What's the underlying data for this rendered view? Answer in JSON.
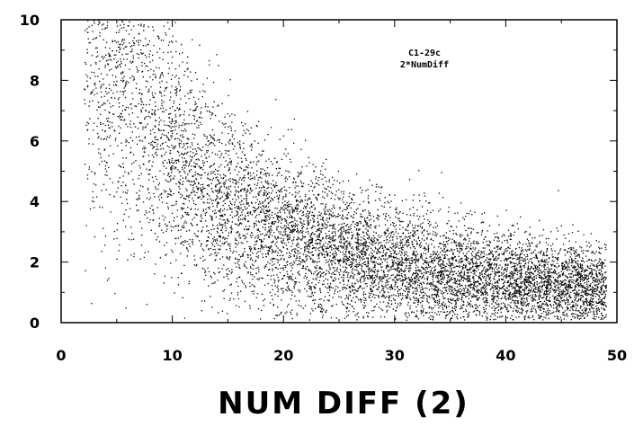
{
  "chart_data": {
    "type": "scatter",
    "title": "",
    "xlabel": "NUM DIFF (2)",
    "ylabel": "",
    "xlim": [
      0,
      50
    ],
    "ylim": [
      0,
      10
    ],
    "x_ticks": [
      "0",
      "10",
      "20",
      "30",
      "40",
      "50"
    ],
    "y_ticks": [
      "0",
      "2",
      "4",
      "6",
      "8",
      "10"
    ],
    "annotation": [
      "C1-29c",
      "2*NumDiff"
    ],
    "grid": false,
    "legend": "none",
    "marker_color": "#000000",
    "description": "Dense point cloud: values near 9-10 at x~3-10, decaying roughly as 1/x toward ~1 by x=48; data spans x from ~2 to ~49.",
    "points": {
      "x_range": [
        2,
        49
      ],
      "trend": [
        {
          "x": 4,
          "y": 8.5
        },
        {
          "x": 8,
          "y": 6.8
        },
        {
          "x": 12,
          "y": 4.8
        },
        {
          "x": 16,
          "y": 3.6
        },
        {
          "x": 20,
          "y": 2.9
        },
        {
          "x": 25,
          "y": 2.3
        },
        {
          "x": 30,
          "y": 1.9
        },
        {
          "x": 35,
          "y": 1.6
        },
        {
          "x": 40,
          "y": 1.4
        },
        {
          "x": 45,
          "y": 1.2
        },
        {
          "x": 48,
          "y": 1.1
        }
      ]
    }
  }
}
